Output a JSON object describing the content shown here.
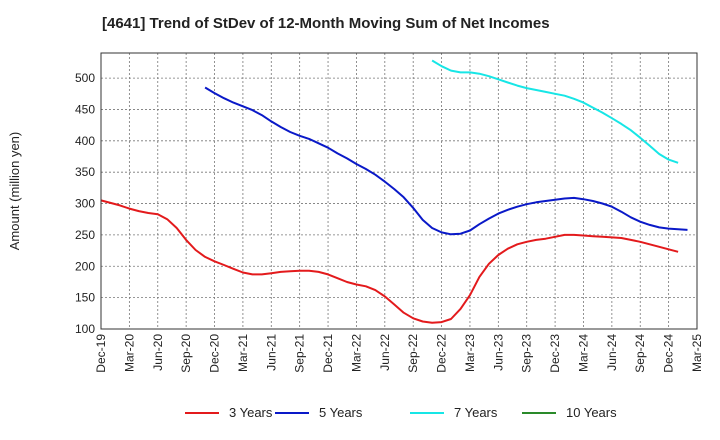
{
  "chart_data": {
    "type": "line",
    "title": "[4641]  Trend of StDev of 12-Month Moving Sum of Net Incomes",
    "ylabel": "Amount (million yen)",
    "xlabel": "",
    "ylim": [
      100,
      540
    ],
    "yticks": [
      100,
      150,
      200,
      250,
      300,
      350,
      400,
      450,
      500
    ],
    "grid": true,
    "legend_position": "bottom",
    "x_ticks": [
      "Dec-19",
      "Mar-20",
      "Jun-20",
      "Sep-20",
      "Dec-20",
      "Mar-21",
      "Jun-21",
      "Sep-21",
      "Dec-21",
      "Mar-22",
      "Jun-22",
      "Sep-22",
      "Dec-22",
      "Mar-23",
      "Jun-23",
      "Sep-23",
      "Dec-23",
      "Mar-24",
      "Jun-24",
      "Sep-24",
      "Dec-24",
      "Mar-25"
    ],
    "series": [
      {
        "name": "3 Years",
        "color": "#e31a1c",
        "start_month": "2019-12",
        "values": [
          305,
          301,
          297,
          292,
          288,
          285,
          283,
          275,
          261,
          242,
          226,
          215,
          208,
          202,
          196,
          190,
          187,
          187,
          189,
          191,
          192,
          193,
          193,
          191,
          187,
          181,
          175,
          171,
          168,
          162,
          152,
          139,
          126,
          117,
          112,
          110,
          111,
          116,
          132,
          154,
          183,
          204,
          218,
          228,
          235,
          239,
          242,
          244,
          247,
          250,
          250,
          249,
          248,
          247,
          246,
          245,
          242,
          239,
          235,
          231,
          227,
          223
        ]
      },
      {
        "name": "5 Years",
        "color": "#0a19c8",
        "start_month": "2020-11",
        "values": [
          485,
          476,
          468,
          461,
          455,
          449,
          441,
          431,
          422,
          414,
          408,
          403,
          396,
          389,
          380,
          372,
          363,
          355,
          346,
          335,
          323,
          310,
          293,
          274,
          261,
          254,
          251,
          252,
          257,
          267,
          276,
          284,
          290,
          295,
          299,
          302,
          304,
          306,
          308,
          309,
          307,
          304,
          300,
          295,
          287,
          278,
          271,
          266,
          262,
          260,
          259,
          258
        ]
      },
      {
        "name": "7 Years",
        "color": "#17e6e6",
        "start_month": "2022-11",
        "values": [
          528,
          519,
          512,
          509,
          509,
          507,
          503,
          498,
          493,
          488,
          484,
          481,
          478,
          475,
          472,
          467,
          461,
          453,
          445,
          436,
          427,
          417,
          405,
          392,
          379,
          370,
          365
        ]
      },
      {
        "name": "10 Years",
        "color": "#2a8a2a",
        "start_month": "2025-03",
        "values": []
      }
    ]
  }
}
